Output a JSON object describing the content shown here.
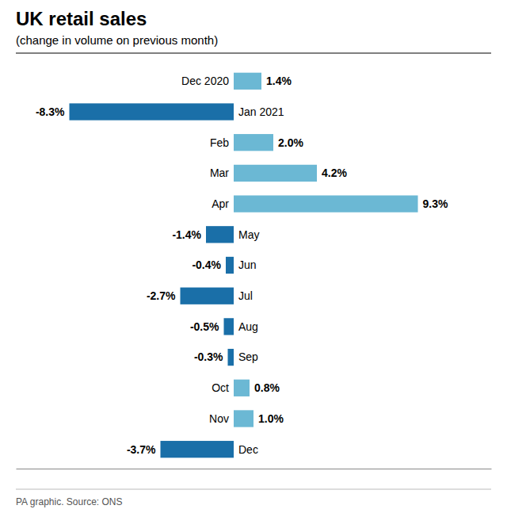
{
  "chart_data": {
    "type": "bar",
    "title": "UK retail sales",
    "subtitle": "(change in volume on previous month)",
    "source": "PA graphic. Source: ONS",
    "categories": [
      "Dec 2020",
      "Jan 2021",
      "Feb",
      "Mar",
      "Apr",
      "May",
      "Jun",
      "Jul",
      "Aug",
      "Sep",
      "Oct",
      "Nov",
      "Dec"
    ],
    "values": [
      1.4,
      -8.3,
      2.0,
      4.2,
      9.3,
      -1.4,
      -0.4,
      -2.7,
      -0.5,
      -0.3,
      0.8,
      1.0,
      -3.7
    ],
    "value_labels": [
      "1.4%",
      "-8.3%",
      "2.0%",
      "4.2%",
      "9.3%",
      "-1.4%",
      "-0.4%",
      "-2.7%",
      "-0.5%",
      "-0.3%",
      "0.8%",
      "1.0%",
      "-3.7%"
    ],
    "colors": [
      "#6BB8D4",
      "#1A6FA8",
      "#6BB8D4",
      "#6BB8D4",
      "#6BB8D4",
      "#1A6FA8",
      "#1A6FA8",
      "#1A6FA8",
      "#1A6FA8",
      "#1A6FA8",
      "#6BB8D4",
      "#6BB8D4",
      "#1A6FA8"
    ],
    "orientation": "horizontal",
    "xlim": [
      -11,
      13
    ],
    "data_labels": true,
    "tick_labels": false
  }
}
